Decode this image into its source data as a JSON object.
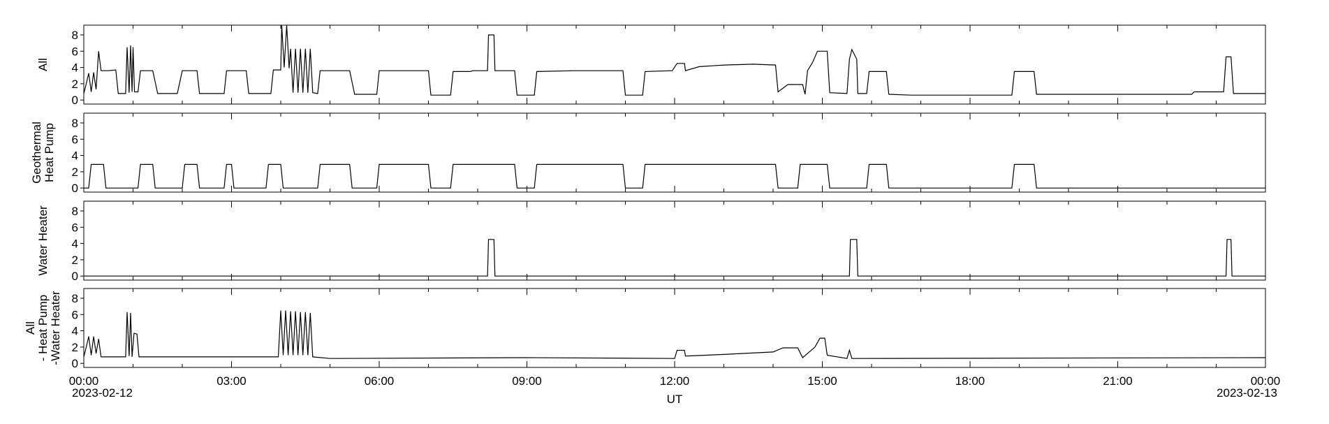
{
  "chart_data": {
    "type": "line",
    "x_unit": "hours UT",
    "xlim": [
      0,
      24
    ],
    "x_ticks": [
      0,
      3,
      6,
      9,
      12,
      15,
      18,
      21,
      24
    ],
    "x_tick_labels": [
      "00:00",
      "03:00",
      "06:00",
      "09:00",
      "12:00",
      "15:00",
      "18:00",
      "21:00",
      "00:00"
    ],
    "x_date_start": "2023-02-12",
    "x_date_end": "2023-02-13",
    "xlabel": "UT",
    "y_ticks": [
      0,
      2,
      4,
      6,
      8
    ],
    "y_tick_labels": [
      "0",
      "2",
      "4",
      "6",
      "8"
    ],
    "ylim": [
      -0.5,
      9.2
    ],
    "grid": false,
    "line_color": "#000000",
    "panels": [
      {
        "id": "all",
        "ylabel_lines": [
          "All"
        ],
        "points": [
          [
            0.0,
            0.8
          ],
          [
            0.05,
            2.0
          ],
          [
            0.1,
            3.3
          ],
          [
            0.15,
            1.0
          ],
          [
            0.2,
            3.4
          ],
          [
            0.25,
            1.3
          ],
          [
            0.3,
            6.0
          ],
          [
            0.35,
            3.6
          ],
          [
            0.5,
            3.6
          ],
          [
            0.65,
            3.7
          ],
          [
            0.7,
            0.8
          ],
          [
            0.85,
            0.8
          ],
          [
            0.88,
            6.5
          ],
          [
            0.92,
            0.9
          ],
          [
            0.95,
            6.7
          ],
          [
            0.98,
            1.0
          ],
          [
            1.0,
            6.5
          ],
          [
            1.03,
            1.0
          ],
          [
            1.1,
            1.0
          ],
          [
            1.15,
            3.6
          ],
          [
            1.4,
            3.6
          ],
          [
            1.5,
            0.8
          ],
          [
            1.9,
            0.8
          ],
          [
            2.0,
            3.6
          ],
          [
            2.3,
            3.6
          ],
          [
            2.35,
            0.8
          ],
          [
            2.85,
            0.8
          ],
          [
            2.9,
            3.6
          ],
          [
            3.3,
            3.6
          ],
          [
            3.35,
            0.8
          ],
          [
            3.8,
            0.8
          ],
          [
            3.85,
            3.7
          ],
          [
            4.0,
            3.7
          ],
          [
            4.02,
            9.2
          ],
          [
            4.07,
            4.0
          ],
          [
            4.12,
            9.2
          ],
          [
            4.17,
            3.9
          ],
          [
            4.2,
            6.3
          ],
          [
            4.25,
            0.9
          ],
          [
            4.3,
            6.3
          ],
          [
            4.35,
            0.9
          ],
          [
            4.4,
            6.3
          ],
          [
            4.45,
            0.9
          ],
          [
            4.5,
            6.3
          ],
          [
            4.55,
            0.9
          ],
          [
            4.6,
            6.3
          ],
          [
            4.65,
            0.9
          ],
          [
            4.75,
            0.8
          ],
          [
            4.8,
            3.6
          ],
          [
            5.4,
            3.6
          ],
          [
            5.5,
            0.7
          ],
          [
            5.95,
            0.7
          ],
          [
            6.0,
            3.6
          ],
          [
            7.0,
            3.6
          ],
          [
            7.05,
            0.6
          ],
          [
            7.45,
            0.6
          ],
          [
            7.5,
            3.5
          ],
          [
            7.85,
            3.5
          ],
          [
            7.9,
            3.6
          ],
          [
            8.2,
            3.6
          ],
          [
            8.22,
            8.0
          ],
          [
            8.33,
            8.0
          ],
          [
            8.35,
            3.6
          ],
          [
            8.75,
            3.6
          ],
          [
            8.8,
            0.6
          ],
          [
            9.15,
            0.6
          ],
          [
            9.2,
            3.5
          ],
          [
            10.0,
            3.6
          ],
          [
            10.95,
            3.6
          ],
          [
            11.0,
            0.6
          ],
          [
            11.35,
            0.6
          ],
          [
            11.4,
            3.5
          ],
          [
            11.95,
            3.6
          ],
          [
            12.05,
            4.5
          ],
          [
            12.2,
            4.5
          ],
          [
            12.22,
            3.6
          ],
          [
            12.5,
            4.1
          ],
          [
            13.0,
            4.3
          ],
          [
            13.6,
            4.4
          ],
          [
            14.05,
            4.3
          ],
          [
            14.1,
            1.0
          ],
          [
            14.3,
            1.9
          ],
          [
            14.6,
            1.9
          ],
          [
            14.65,
            0.7
          ],
          [
            14.7,
            3.6
          ],
          [
            14.8,
            4.6
          ],
          [
            14.9,
            6.0
          ],
          [
            15.1,
            6.0
          ],
          [
            15.15,
            0.9
          ],
          [
            15.5,
            0.8
          ],
          [
            15.55,
            5.0
          ],
          [
            15.6,
            6.2
          ],
          [
            15.7,
            5.0
          ],
          [
            15.72,
            0.8
          ],
          [
            15.9,
            0.8
          ],
          [
            15.95,
            3.5
          ],
          [
            16.3,
            3.5
          ],
          [
            16.35,
            0.7
          ],
          [
            16.8,
            0.6
          ],
          [
            18.85,
            0.6
          ],
          [
            18.9,
            3.5
          ],
          [
            19.3,
            3.5
          ],
          [
            19.35,
            0.7
          ],
          [
            22.5,
            0.7
          ],
          [
            22.55,
            1.0
          ],
          [
            23.15,
            1.0
          ],
          [
            23.2,
            5.3
          ],
          [
            23.3,
            5.3
          ],
          [
            23.35,
            0.8
          ],
          [
            24.0,
            0.8
          ]
        ]
      },
      {
        "id": "geothermal-heat-pump",
        "ylabel_lines": [
          "Geothermal",
          "Heat Pump"
        ],
        "points": [
          [
            0.0,
            0.0
          ],
          [
            0.1,
            0.0
          ],
          [
            0.15,
            2.9
          ],
          [
            0.4,
            2.9
          ],
          [
            0.45,
            0.0
          ],
          [
            1.1,
            0.0
          ],
          [
            1.15,
            2.9
          ],
          [
            1.4,
            2.9
          ],
          [
            1.45,
            0.0
          ],
          [
            2.0,
            0.0
          ],
          [
            2.05,
            2.9
          ],
          [
            2.3,
            2.9
          ],
          [
            2.35,
            0.0
          ],
          [
            2.85,
            0.0
          ],
          [
            2.9,
            2.9
          ],
          [
            3.0,
            2.9
          ],
          [
            3.05,
            0.0
          ],
          [
            3.7,
            0.0
          ],
          [
            3.75,
            2.9
          ],
          [
            4.0,
            2.9
          ],
          [
            4.05,
            0.0
          ],
          [
            4.75,
            0.0
          ],
          [
            4.8,
            2.9
          ],
          [
            5.4,
            2.9
          ],
          [
            5.45,
            0.0
          ],
          [
            5.95,
            0.0
          ],
          [
            6.0,
            2.9
          ],
          [
            7.0,
            2.9
          ],
          [
            7.05,
            0.0
          ],
          [
            7.45,
            0.0
          ],
          [
            7.5,
            2.9
          ],
          [
            8.75,
            2.9
          ],
          [
            8.8,
            0.0
          ],
          [
            9.15,
            0.0
          ],
          [
            9.2,
            2.9
          ],
          [
            10.95,
            2.9
          ],
          [
            11.0,
            0.0
          ],
          [
            11.35,
            0.0
          ],
          [
            11.4,
            2.9
          ],
          [
            14.05,
            2.9
          ],
          [
            14.1,
            0.0
          ],
          [
            14.5,
            0.0
          ],
          [
            14.55,
            2.9
          ],
          [
            15.1,
            2.9
          ],
          [
            15.15,
            0.0
          ],
          [
            15.9,
            0.0
          ],
          [
            15.95,
            2.9
          ],
          [
            16.3,
            2.9
          ],
          [
            16.35,
            0.0
          ],
          [
            18.85,
            0.0
          ],
          [
            18.9,
            2.9
          ],
          [
            19.3,
            2.9
          ],
          [
            19.35,
            0.0
          ],
          [
            24.0,
            0.0
          ]
        ]
      },
      {
        "id": "water-heater",
        "ylabel_lines": [
          "Water Heater"
        ],
        "points": [
          [
            0.0,
            0.0
          ],
          [
            8.2,
            0.0
          ],
          [
            8.22,
            4.5
          ],
          [
            8.33,
            4.5
          ],
          [
            8.35,
            0.0
          ],
          [
            15.55,
            0.0
          ],
          [
            15.57,
            4.5
          ],
          [
            15.7,
            4.5
          ],
          [
            15.72,
            0.0
          ],
          [
            23.2,
            0.0
          ],
          [
            23.22,
            4.5
          ],
          [
            23.3,
            4.5
          ],
          [
            23.32,
            0.0
          ],
          [
            24.0,
            0.0
          ]
        ]
      },
      {
        "id": "residual",
        "ylabel_lines": [
          "All",
          "- Heat Pump",
          "-Water Heater"
        ],
        "points": [
          [
            0.0,
            0.8
          ],
          [
            0.05,
            2.0
          ],
          [
            0.1,
            3.3
          ],
          [
            0.15,
            1.0
          ],
          [
            0.2,
            3.3
          ],
          [
            0.25,
            1.2
          ],
          [
            0.3,
            3.0
          ],
          [
            0.35,
            0.8
          ],
          [
            0.85,
            0.8
          ],
          [
            0.88,
            6.3
          ],
          [
            0.92,
            0.9
          ],
          [
            0.95,
            6.2
          ],
          [
            0.98,
            0.8
          ],
          [
            1.02,
            3.7
          ],
          [
            1.08,
            3.6
          ],
          [
            1.12,
            0.8
          ],
          [
            3.95,
            0.8
          ],
          [
            4.0,
            6.5
          ],
          [
            4.05,
            1.0
          ],
          [
            4.1,
            6.5
          ],
          [
            4.15,
            1.0
          ],
          [
            4.2,
            6.4
          ],
          [
            4.25,
            1.0
          ],
          [
            4.3,
            6.4
          ],
          [
            4.35,
            1.0
          ],
          [
            4.4,
            6.3
          ],
          [
            4.45,
            1.0
          ],
          [
            4.5,
            6.3
          ],
          [
            4.55,
            1.0
          ],
          [
            4.6,
            6.2
          ],
          [
            4.65,
            0.8
          ],
          [
            5.0,
            0.6
          ],
          [
            9.0,
            0.7
          ],
          [
            12.0,
            0.6
          ],
          [
            12.05,
            1.6
          ],
          [
            12.2,
            1.6
          ],
          [
            12.22,
            0.9
          ],
          [
            13.0,
            1.1
          ],
          [
            14.0,
            1.4
          ],
          [
            14.2,
            1.9
          ],
          [
            14.5,
            1.9
          ],
          [
            14.6,
            0.7
          ],
          [
            14.85,
            2.0
          ],
          [
            14.95,
            3.1
          ],
          [
            15.05,
            3.1
          ],
          [
            15.1,
            1.0
          ],
          [
            15.5,
            0.6
          ],
          [
            15.55,
            1.6
          ],
          [
            15.6,
            0.6
          ],
          [
            24.0,
            0.7
          ]
        ]
      }
    ]
  }
}
